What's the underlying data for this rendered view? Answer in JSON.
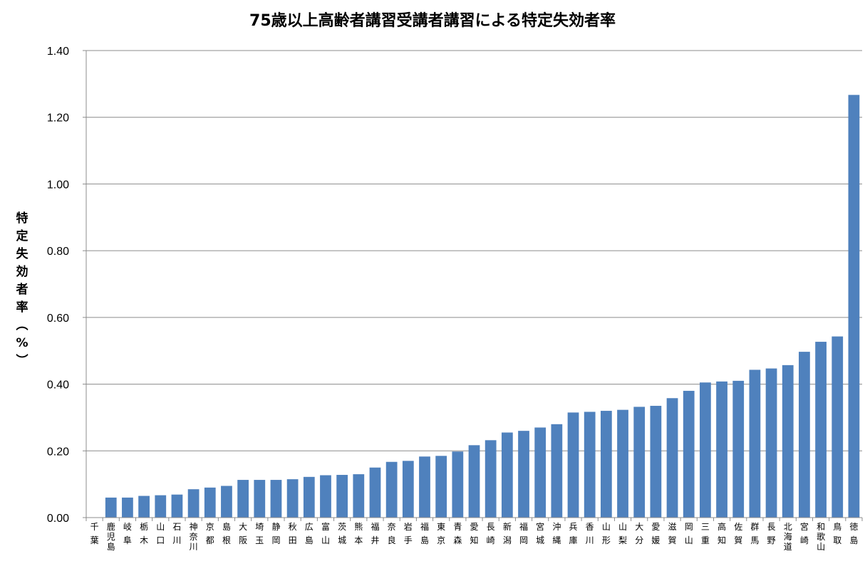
{
  "chart_data": {
    "type": "bar",
    "title": "75歳以上高齢者講習受講者講習による特定失効者率",
    "ylabel": "特定失効者率（%）",
    "xlabel": "",
    "ylim": [
      0,
      1.4
    ],
    "yticks": [
      "0.00",
      "0.20",
      "0.40",
      "0.60",
      "0.80",
      "1.00",
      "1.20",
      "1.40"
    ],
    "grid": true,
    "legend": "none",
    "bar_color": "#4f81bd",
    "categories": [
      "千葉",
      "鹿児島",
      "岐阜",
      "栃木",
      "山口",
      "石川",
      "神奈川",
      "京都",
      "島根",
      "大阪",
      "埼玉",
      "静岡",
      "秋田",
      "広島",
      "富山",
      "茨城",
      "熊本",
      "福井",
      "奈良",
      "岩手",
      "福島",
      "東京",
      "青森",
      "愛知",
      "長崎",
      "新潟",
      "福岡",
      "宮城",
      "沖縄",
      "兵庫",
      "香川",
      "山形",
      "山梨",
      "大分",
      "愛媛",
      "滋賀",
      "岡山",
      "三重",
      "高知",
      "佐賀",
      "群馬",
      "長野",
      "北海道",
      "宮崎",
      "和歌山",
      "鳥取",
      "徳島"
    ],
    "values": [
      0.0,
      0.06,
      0.06,
      0.065,
      0.067,
      0.069,
      0.085,
      0.09,
      0.095,
      0.113,
      0.113,
      0.113,
      0.115,
      0.122,
      0.127,
      0.128,
      0.13,
      0.15,
      0.167,
      0.17,
      0.183,
      0.185,
      0.198,
      0.217,
      0.232,
      0.255,
      0.26,
      0.27,
      0.28,
      0.315,
      0.317,
      0.32,
      0.323,
      0.332,
      0.335,
      0.358,
      0.38,
      0.405,
      0.408,
      0.41,
      0.443,
      0.447,
      0.457,
      0.497,
      0.527,
      0.543,
      1.267
    ]
  }
}
